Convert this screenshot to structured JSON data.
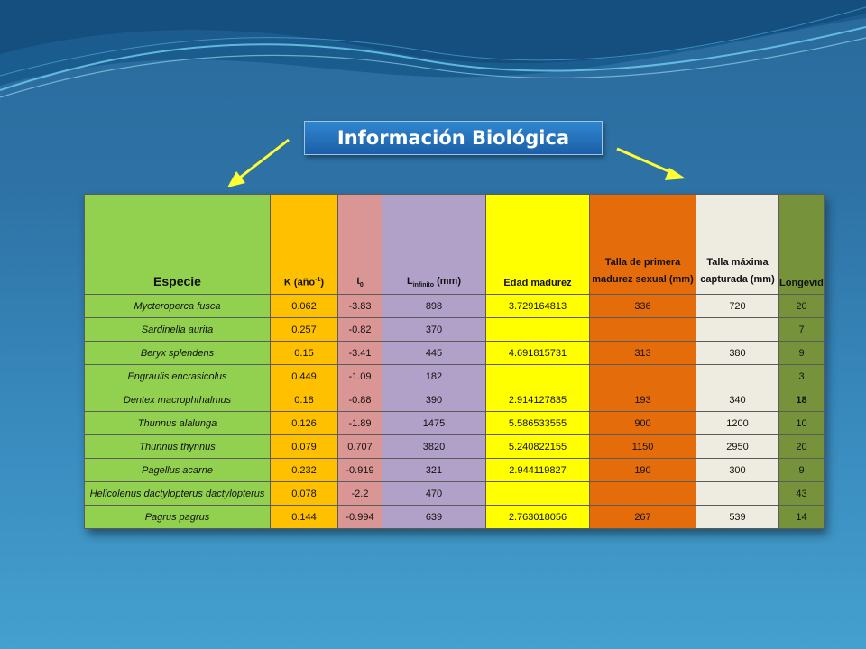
{
  "slide": {
    "title": "Información Biológica",
    "colors": {
      "title_bg": "#1f6bb5",
      "arrow": "#ffff33"
    }
  },
  "table": {
    "headers": {
      "especie": "Especie",
      "k_base": "K (año",
      "k_sup": "-1",
      "k_end": ")",
      "t0_base": "t",
      "t0_sub": "0",
      "l_base": "L",
      "l_sub": "infinito",
      "l_end": " (mm)",
      "edad": "Edad madurez",
      "talla_primera": "Talla de primera madurez sexual (mm)",
      "talla_maxima": "Talla máxima capturada (mm)",
      "longevidad": "Longevidad"
    },
    "rows": [
      {
        "especie": "Mycteroperca fusca",
        "k": "0.062",
        "t0": "-3.83",
        "l": "898",
        "edad": "3.729164813",
        "tp": "336",
        "tm": "720",
        "lo": "20"
      },
      {
        "especie": "Sardinella aurita",
        "k": "0.257",
        "t0": "-0.82",
        "l": "370",
        "edad": "",
        "tp": "",
        "tm": "",
        "lo": "7"
      },
      {
        "especie": "Beryx splendens",
        "k": "0.15",
        "t0": "-3.41",
        "l": "445",
        "edad": "4.691815731",
        "tp": "313",
        "tm": "380",
        "lo": "9"
      },
      {
        "especie": "Engraulis encrasicolus",
        "k": "0.449",
        "t0": "-1.09",
        "l": "182",
        "edad": "",
        "tp": "",
        "tm": "",
        "lo": "3"
      },
      {
        "especie": "Dentex macrophthalmus",
        "k": "0.18",
        "t0": "-0.88",
        "l": "390",
        "edad": "2.914127835",
        "tp": "193",
        "tm": "340",
        "lo": "18"
      },
      {
        "especie": "Thunnus alalunga",
        "k": "0.126",
        "t0": "-1.89",
        "l": "1475",
        "edad": "5.586533555",
        "tp": "900",
        "tm": "1200",
        "lo": "10"
      },
      {
        "especie": "Thunnus thynnus",
        "k": "0.079",
        "t0": "0.707",
        "l": "3820",
        "edad": "5.240822155",
        "tp": "1150",
        "tm": "2950",
        "lo": "20"
      },
      {
        "especie": "Pagellus acarne",
        "k": "0.232",
        "t0": "-0.919",
        "l": "321",
        "edad": "2.944119827",
        "tp": "190",
        "tm": "300",
        "lo": "9"
      },
      {
        "especie": "Helicolenus dactylopterus dactylopterus",
        "k": "0.078",
        "t0": "-2.2",
        "l": "470",
        "edad": "",
        "tp": "",
        "tm": "",
        "lo": "43"
      },
      {
        "especie": "Pagrus pagrus",
        "k": "0.144",
        "t0": "-0.994",
        "l": "639",
        "edad": "2.763018056",
        "tp": "267",
        "tm": "539",
        "lo": "14"
      }
    ]
  }
}
